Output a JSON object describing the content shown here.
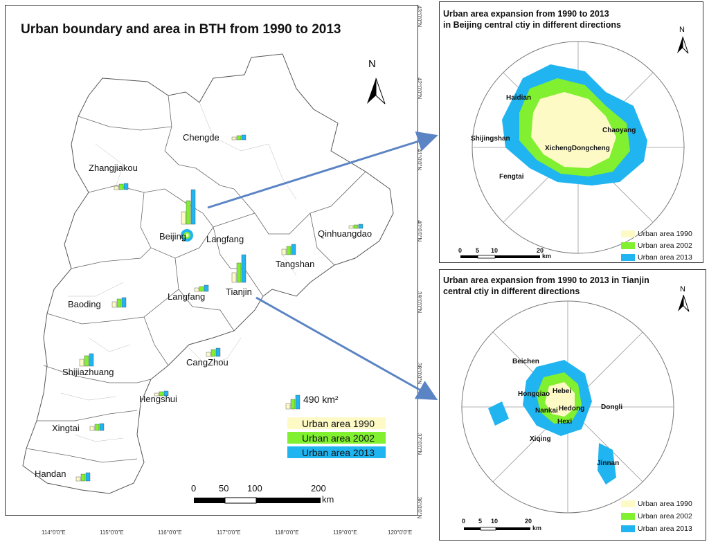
{
  "main_map": {
    "title": "Urban boundary and area in BTH from 1990 to 2013",
    "north_label": "N",
    "cities": [
      "Chengde",
      "Zhangjiakou",
      "Beijing",
      "Langfang",
      "Qinhuangdao",
      "Tangshan",
      "Baoding",
      "Langfang",
      "Tianjin",
      "CangZhou",
      "Shijiazhuang",
      "Hengshui",
      "Xingtai",
      "Handan"
    ],
    "legend": {
      "bar_scale_label": "490 km²",
      "items": [
        "Urban area 1990",
        "Urban area 2002",
        "Urban area 2013"
      ]
    },
    "scale_bar": {
      "ticks": [
        "0",
        "50",
        "100",
        "200"
      ],
      "unit": "km"
    },
    "latitude_ticks": [
      "43°0'0\"N",
      "42°0'0\"N",
      "41°0'0\"N",
      "40°0'0\"N",
      "39°0'0\"N",
      "38°0'0\"N",
      "37°0'0\"N",
      "36°0'0\"N"
    ],
    "longitude_ticks": [
      "114°0'0\"E",
      "115°0'0\"E",
      "116°0'0\"E",
      "117°0'0\"E",
      "118°0'0\"E",
      "119°0'0\"E",
      "120°0'0\"E"
    ]
  },
  "beijing_inset": {
    "title_line1": "Urban area expansion from 1990 to 2013",
    "title_line2": "in Beijing central ctiy in different directions",
    "north_label": "N",
    "districts": [
      "Haidian",
      "Chaoyang",
      "Shijingshan",
      "XichengDongcheng",
      "Fengtai"
    ],
    "legend_items": [
      "Urban area 1990",
      "Urban area 2002",
      "Urban area 2013"
    ],
    "scale_ticks": [
      "0",
      "5",
      "10",
      "20"
    ],
    "scale_unit": "km"
  },
  "tianjin_inset": {
    "title_line1": "Urban area expansion from 1990 to 2013 in Tianjin",
    "title_line2": "central ctiy in different directions",
    "north_label": "N",
    "districts": [
      "Beichen",
      "Hongqiao",
      "Hebei",
      "Hedong",
      "Dongli",
      "Nankai",
      "Hexi",
      "Xiqing",
      "Jinnan"
    ],
    "legend_items": [
      "Urban area 1990",
      "Urban area 2002",
      "Urban area 2013"
    ],
    "scale_ticks": [
      "0",
      "5",
      "10",
      "20"
    ],
    "scale_unit": "km"
  },
  "colors": {
    "urban_1990": "#fdfac6",
    "urban_2002": "#80f030",
    "urban_2013": "#20b4f0",
    "arrow": "#5b84c4"
  }
}
